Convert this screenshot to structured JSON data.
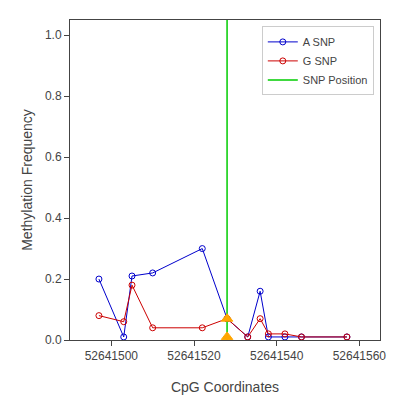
{
  "chart_data": {
    "type": "line",
    "xlabel": "CpG Coordinates",
    "ylabel": "Methylation Frequency",
    "xlim": [
      52641490,
      52641565
    ],
    "xticks": [
      52641500,
      52641520,
      52641540,
      52641560
    ],
    "ylim": [
      0.0,
      1.05
    ],
    "yticks": [
      {
        "value": 0.0,
        "label": "0.0"
      },
      {
        "value": 0.2,
        "label": "0.2"
      },
      {
        "value": 0.4,
        "label": "0.4"
      },
      {
        "value": 0.6,
        "label": "0.6"
      },
      {
        "value": 0.8,
        "label": "0.8"
      },
      {
        "value": 1.0,
        "label": "1.0"
      }
    ],
    "grid": false,
    "legend": "upper right",
    "series": [
      {
        "name": "A SNP",
        "type": "line",
        "color": "#0000cc",
        "marker": "circle-open",
        "line_style": "solid",
        "x": [
          52641497,
          52641503,
          52641505,
          52641510,
          52641522,
          52641528,
          52641533,
          52641536,
          52641538,
          52641542,
          52641546,
          52641557
        ],
        "values": [
          0.2,
          0.01,
          0.21,
          0.22,
          0.3,
          0.07,
          0.01,
          0.16,
          0.01,
          0.01,
          0.01,
          0.01
        ]
      },
      {
        "name": "G SNP",
        "type": "line",
        "color": "#cc0000",
        "marker": "circle-open",
        "line_style": "solid",
        "x": [
          52641497,
          52641503,
          52641505,
          52641510,
          52641522,
          52641528,
          52641533,
          52641536,
          52641538,
          52641542,
          52641546,
          52641557
        ],
        "values": [
          0.08,
          0.06,
          0.18,
          0.04,
          0.04,
          0.07,
          0.01,
          0.07,
          0.02,
          0.02,
          0.01,
          0.01
        ]
      },
      {
        "name": "SNP Position",
        "type": "vline",
        "color": "#00cc00",
        "line_style": "solid",
        "x": 52641528
      },
      {
        "type": "scatter",
        "color": "#ffa500",
        "marker": "triangle-up",
        "line_style": "none",
        "x": [
          52641528,
          52641528
        ],
        "values": [
          0.07,
          0.01
        ]
      }
    ]
  }
}
